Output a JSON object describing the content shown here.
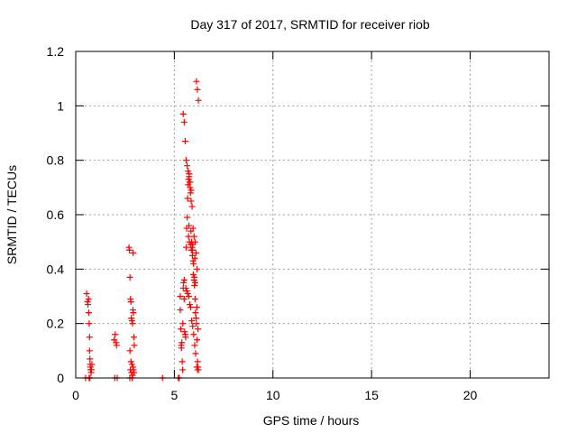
{
  "chart_data": {
    "type": "scatter",
    "title": "Day 317 of 2017, SRMTID for receiver riob",
    "xlabel": "GPS time / hours",
    "ylabel": "SRMTID / TECUs",
    "xlim": [
      0,
      24
    ],
    "ylim": [
      0,
      1.2
    ],
    "xticks": [
      0,
      5,
      10,
      15,
      20
    ],
    "yticks": [
      0,
      0.2,
      0.4,
      0.6,
      0.8,
      1,
      1.2
    ],
    "xtick_labels": [
      "0",
      "5",
      "10",
      "15",
      "20"
    ],
    "ytick_labels": [
      "0",
      "0.2",
      "0.4",
      "0.6",
      "0.8",
      "1",
      "1.2"
    ],
    "grid": true,
    "marker": "+",
    "color": "#ff0000",
    "series": [
      {
        "name": "SRMTID",
        "x": [
          0.5,
          0.55,
          0.6,
          0.62,
          0.65,
          0.66,
          0.68,
          0.7,
          0.7,
          0.72,
          0.73,
          0.74,
          0.75,
          0.76,
          0.78,
          0.8,
          0.82,
          0.72,
          0.68,
          1.95,
          2.0,
          2.05,
          2.07,
          2.1,
          1.98,
          2.7,
          2.72,
          2.75,
          2.78,
          2.8,
          2.82,
          2.85,
          2.88,
          2.9,
          2.92,
          2.95,
          2.97,
          2.75,
          2.8,
          2.85,
          2.9,
          2.77,
          2.83,
          2.88,
          2.93,
          2.96,
          2.74,
          2.86,
          2.91,
          4.4,
          5.2,
          5.25,
          5.3,
          5.3,
          5.33,
          5.35,
          5.36,
          5.38,
          5.4,
          5.42,
          5.43,
          5.45,
          5.47,
          5.5,
          5.5,
          5.52,
          5.55,
          5.57,
          5.6,
          5.62,
          5.65,
          5.67,
          5.7,
          5.72,
          5.75,
          5.77,
          5.8,
          5.82,
          5.85,
          5.88,
          5.9,
          5.92,
          5.95,
          5.97,
          6.0,
          6.02,
          6.05,
          6.07,
          6.1,
          6.12,
          6.15,
          6.18,
          6.2,
          6.22,
          5.6,
          5.65,
          5.7,
          5.75,
          5.8,
          5.85,
          5.9,
          5.95,
          6.0,
          6.05,
          6.1,
          6.15,
          5.58,
          5.63,
          5.68,
          5.73,
          5.78,
          5.83,
          5.88,
          5.93,
          5.98,
          6.03,
          6.08,
          6.13,
          6.18,
          5.72,
          5.76,
          5.82,
          5.86,
          5.92,
          5.96,
          6.02,
          6.06,
          5.74,
          5.84,
          5.94,
          6.04,
          6.14,
          6.2,
          6.12,
          6.17,
          6.22,
          5.45,
          5.5,
          5.55
        ],
        "y": [
          0.0,
          0.31,
          0.28,
          0.27,
          0.29,
          0.24,
          0.2,
          0.15,
          0.1,
          0.07,
          0.05,
          0.04,
          0.03,
          0.03,
          0.02,
          0.03,
          0.05,
          0.0,
          0.0,
          0.14,
          0.16,
          0.13,
          0.12,
          0.0,
          0.0,
          0.48,
          0.47,
          0.37,
          0.29,
          0.28,
          0.22,
          0.21,
          0.2,
          0.25,
          0.24,
          0.15,
          0.12,
          0.1,
          0.06,
          0.05,
          0.04,
          0.03,
          0.02,
          0.01,
          0.03,
          0.02,
          0.0,
          0.0,
          0.46,
          0.0,
          0.0,
          0.0,
          0.3,
          0.25,
          0.18,
          0.12,
          0.11,
          0.13,
          0.06,
          0.03,
          0.2,
          0.33,
          0.35,
          0.36,
          0.29,
          0.17,
          0.16,
          0.15,
          0.48,
          0.55,
          0.59,
          0.66,
          0.71,
          0.73,
          0.74,
          0.72,
          0.7,
          0.68,
          0.65,
          0.5,
          0.48,
          0.47,
          0.43,
          0.42,
          0.36,
          0.34,
          0.29,
          0.24,
          0.22,
          0.2,
          0.14,
          0.06,
          0.04,
          0.03,
          0.8,
          0.78,
          0.76,
          0.75,
          0.72,
          0.69,
          0.63,
          0.55,
          0.52,
          0.5,
          0.46,
          0.4,
          0.33,
          0.32,
          0.31,
          0.3,
          0.27,
          0.26,
          0.21,
          0.19,
          0.16,
          0.12,
          0.09,
          0.04,
          0.03,
          0.52,
          0.5,
          0.49,
          0.47,
          0.45,
          0.38,
          0.37,
          0.35,
          0.56,
          0.54,
          0.49,
          0.44,
          0.26,
          0.18,
          1.09,
          1.06,
          1.02,
          0.97,
          0.94,
          0.87
        ]
      }
    ]
  }
}
